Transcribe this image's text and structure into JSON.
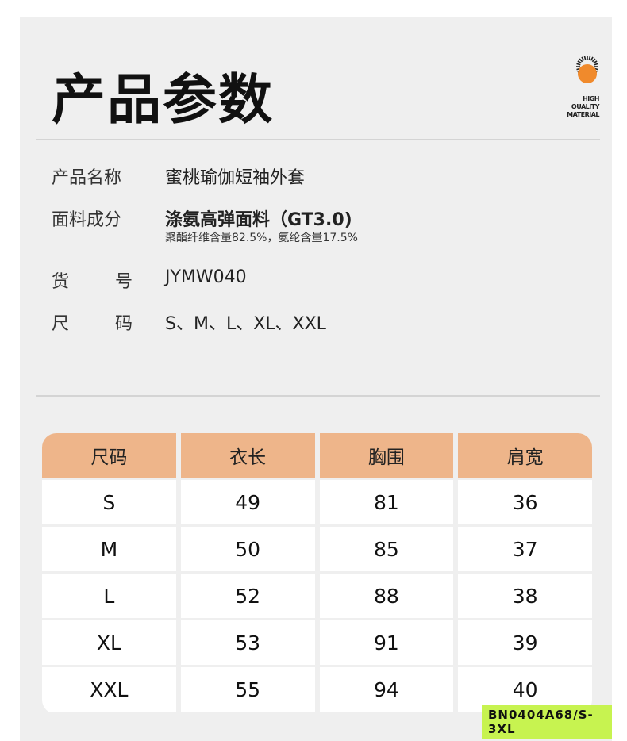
{
  "title": "产品参数",
  "badge": {
    "icon": "sun-icon",
    "lines": [
      "HIGH",
      "QUALITY",
      "MATERIAL"
    ],
    "color": "#f08a2c"
  },
  "specs": [
    {
      "label": "产品名称",
      "value": "蜜桃瑜伽短袖外套"
    },
    {
      "label": "面料成分",
      "value": "涤氨高弹面料（GT3.0)",
      "sub": "聚酯纤维含量82.5%，氨纶含量17.5%"
    },
    {
      "label": [
        "货",
        "号"
      ],
      "value": "JYMW040"
    },
    {
      "label": [
        "尺",
        "码"
      ],
      "value": "S、M、L、XL、XXL"
    }
  ],
  "table": {
    "headers": [
      "尺码",
      "衣长",
      "胸围",
      "肩宽"
    ],
    "rows": [
      [
        "S",
        "49",
        "81",
        "36"
      ],
      [
        "M",
        "50",
        "85",
        "37"
      ],
      [
        "L",
        "52",
        "88",
        "38"
      ],
      [
        "XL",
        "53",
        "91",
        "39"
      ],
      [
        "XXL",
        "55",
        "94",
        "40"
      ]
    ],
    "header_color": "#eeb58a"
  },
  "tag": "BN0404A68/S-3XL",
  "tag_color": "#c7f350"
}
